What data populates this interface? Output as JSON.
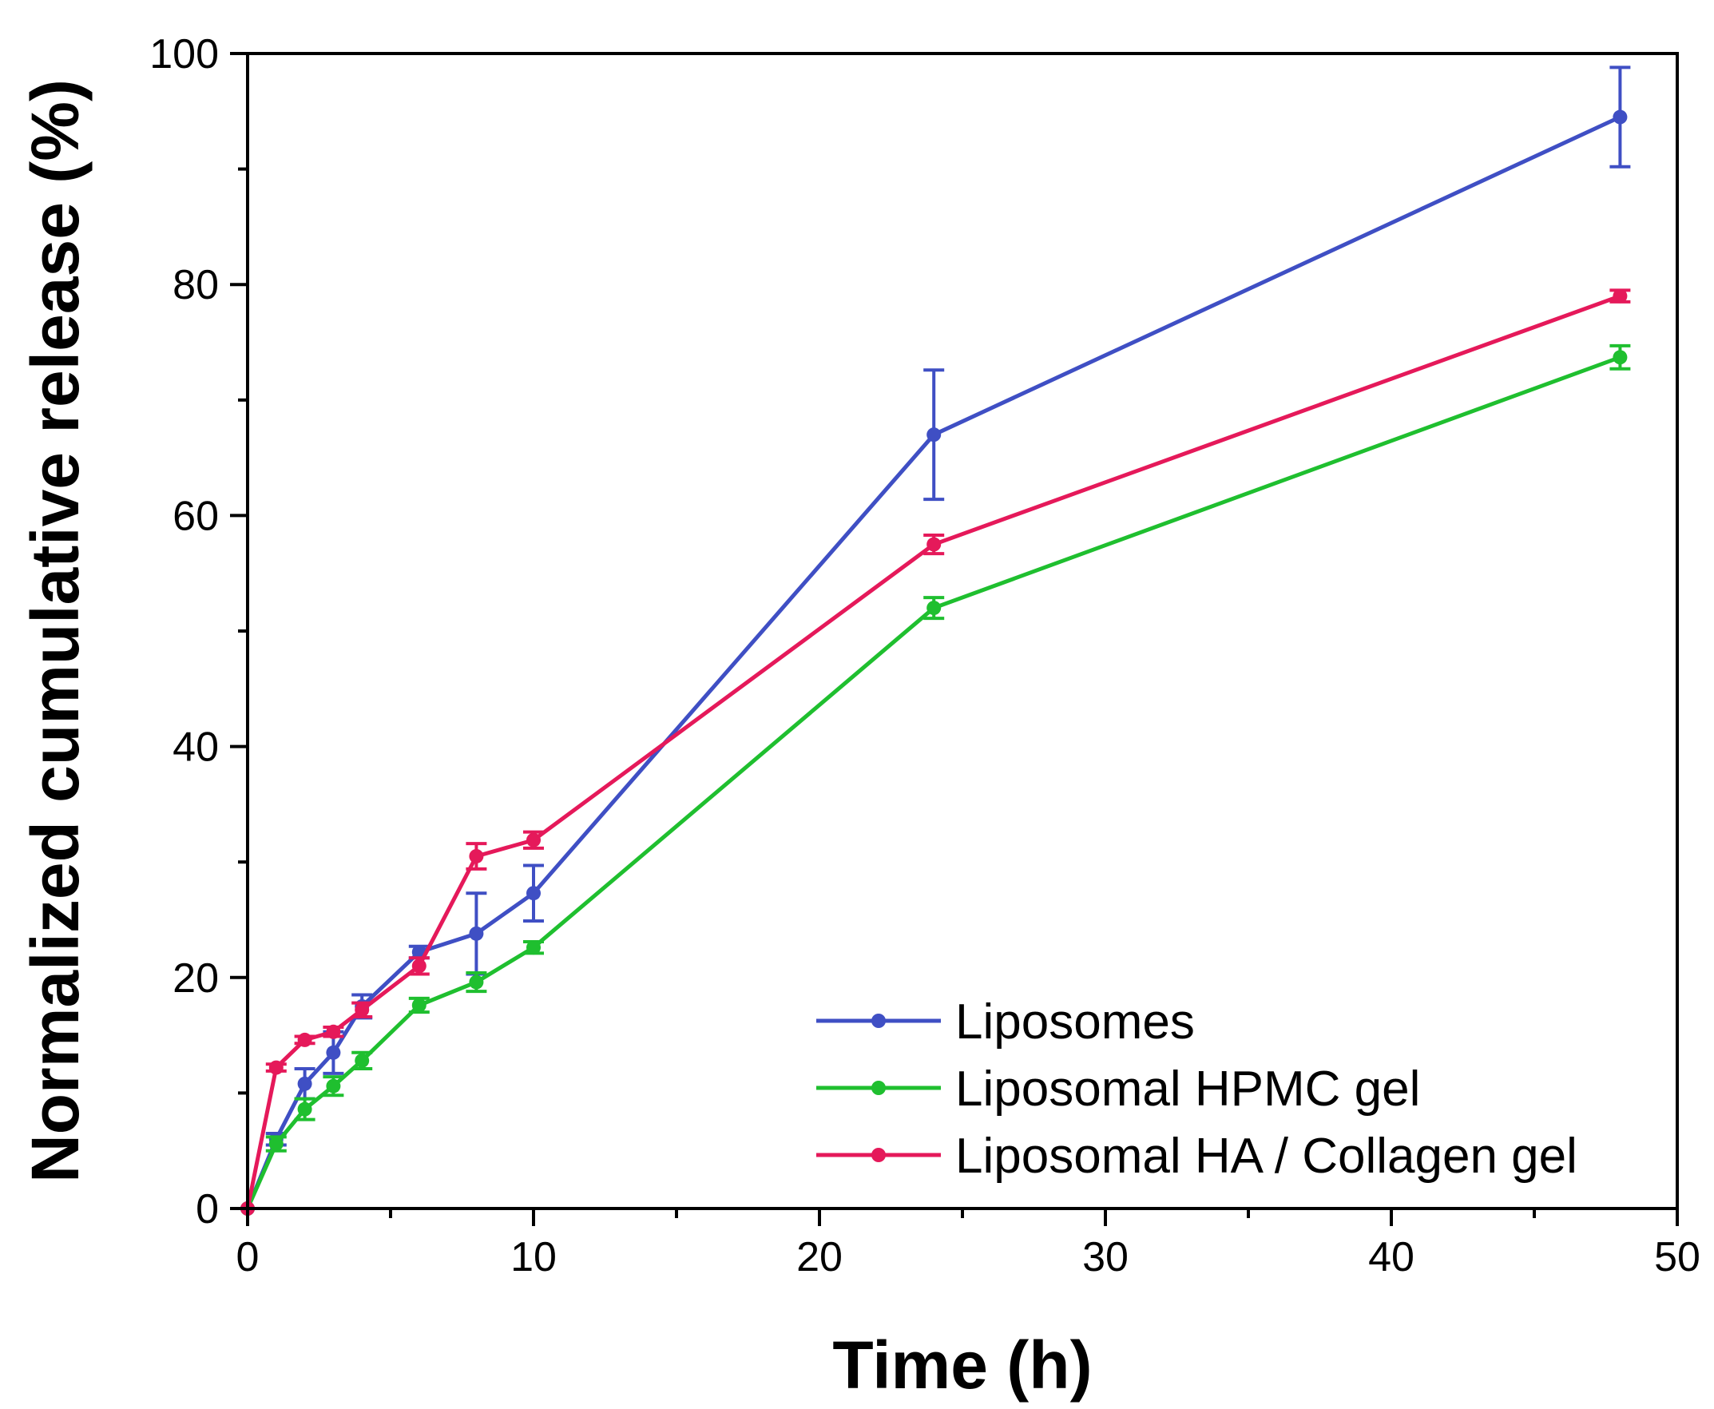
{
  "chart_data": {
    "type": "line",
    "title": "",
    "xlabel": "Time (h)",
    "ylabel": "Normalized cumulative release (%)",
    "xlim": [
      0,
      50
    ],
    "ylim": [
      0,
      100
    ],
    "xticks": [
      "0",
      "10",
      "20",
      "30",
      "40",
      "50"
    ],
    "yticks": [
      "0",
      "20",
      "40",
      "60",
      "80",
      "100"
    ],
    "grid": false,
    "legend_position": "bottom-right",
    "series": [
      {
        "name": "Liposomes",
        "color": "#3f4fc4",
        "x": [
          0,
          1,
          2,
          3,
          4,
          6,
          8,
          10,
          24,
          48
        ],
        "values": [
          0,
          6,
          10.8,
          13.5,
          17.5,
          22.2,
          23.8,
          27.3,
          67,
          94.5
        ],
        "errors": [
          0,
          0.5,
          1.3,
          1.8,
          1.0,
          0.5,
          3.5,
          2.4,
          5.6,
          4.3
        ]
      },
      {
        "name": "Liposomal HPMC gel",
        "color": "#1fbf2f",
        "x": [
          0,
          1,
          2,
          3,
          4,
          6,
          8,
          10,
          24,
          48
        ],
        "values": [
          0,
          5.6,
          8.6,
          10.6,
          12.8,
          17.6,
          19.6,
          22.6,
          52,
          73.7
        ],
        "errors": [
          0,
          0.6,
          0.9,
          0.8,
          0.7,
          0.6,
          0.8,
          0.5,
          0.9,
          1.0
        ]
      },
      {
        "name": "Liposomal HA / Collagen gel",
        "color": "#e5195a",
        "x": [
          0,
          1,
          2,
          3,
          4,
          6,
          8,
          10,
          24,
          48
        ],
        "values": [
          0,
          12.2,
          14.6,
          15.3,
          17.2,
          21,
          30.5,
          31.9,
          57.5,
          79
        ],
        "errors": [
          0,
          0.3,
          0.3,
          0.4,
          0.6,
          0.7,
          1.1,
          0.7,
          0.8,
          0.5
        ]
      }
    ]
  }
}
